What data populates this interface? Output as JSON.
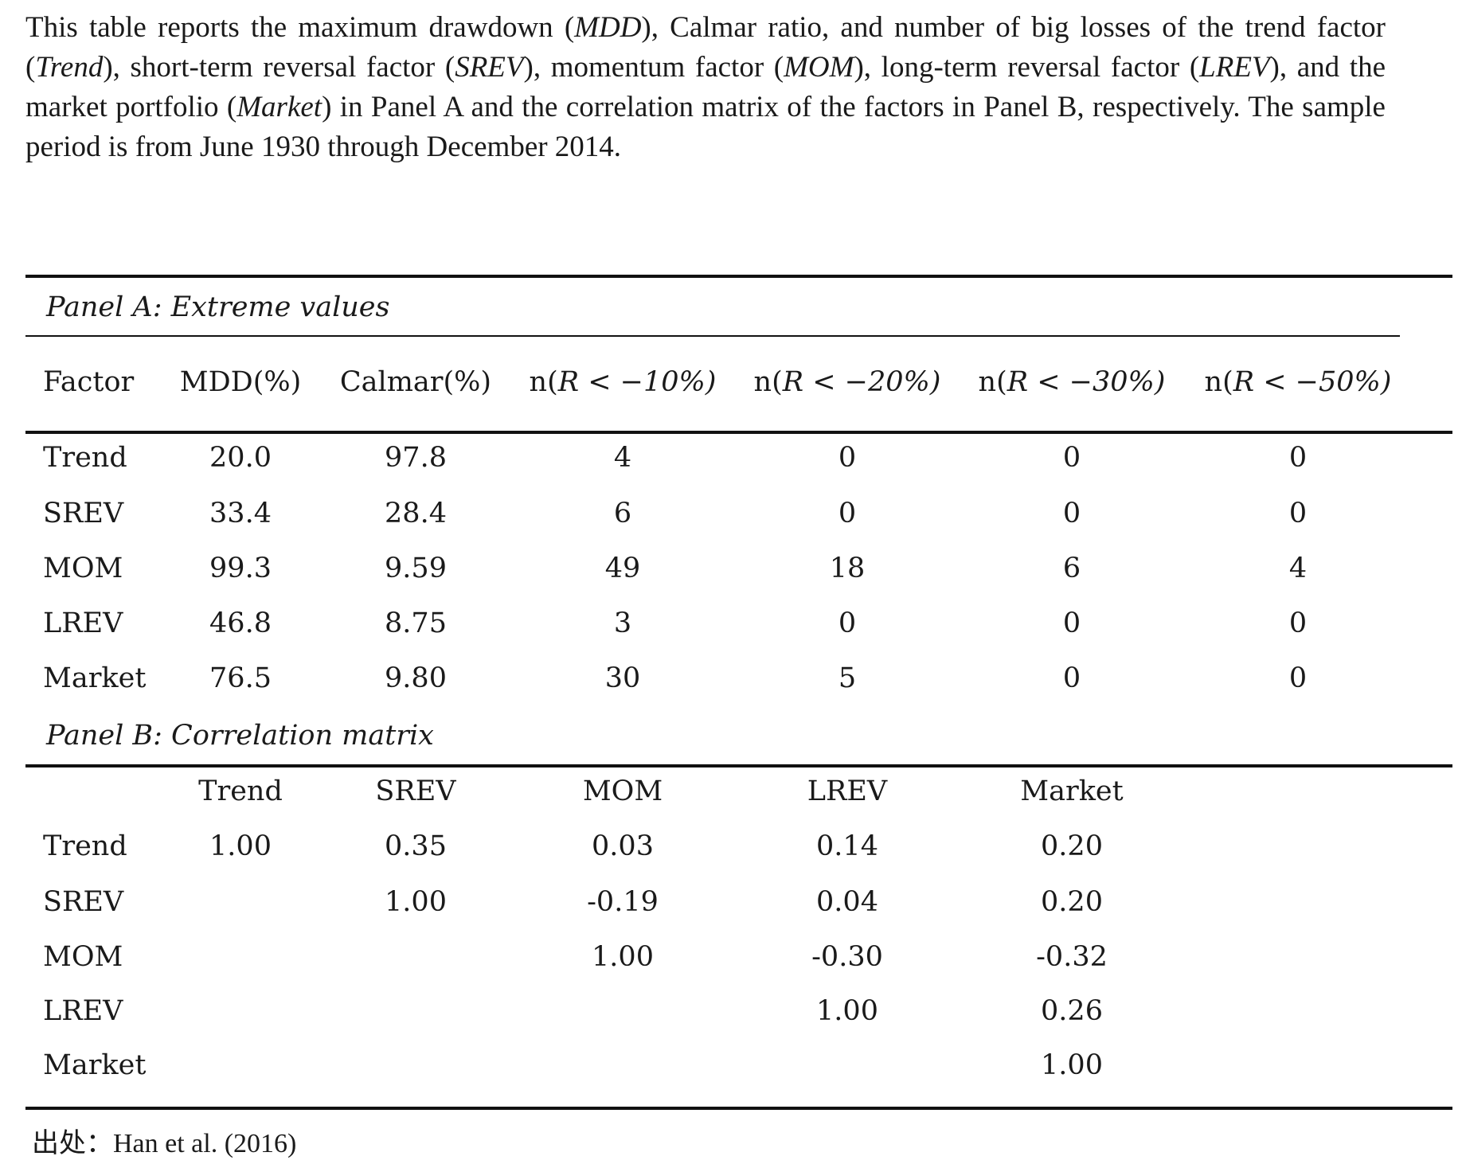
{
  "caption": {
    "p1": "This table reports the maximum drawdown (",
    "t1": "MDD",
    "p2": "), Calmar ratio, and number of big losses of the trend factor (",
    "t2": "Trend",
    "p3": "), short-term reversal factor (",
    "t3": "SREV",
    "p4": "), momentum factor (",
    "t4": "MOM",
    "p5": "), long-term reversal factor (",
    "t5": "LREV",
    "p6": "), and the market portfolio (",
    "t6": "Market",
    "p7": ") in Panel A and the correlation matrix of the factors in Panel B, respectively.  The sample period is from June 1930 through December 2014."
  },
  "panel_a": {
    "title": "Panel A: Extreme values",
    "headers": [
      "Factor",
      "MDD(%)",
      "Calmar(%)",
      "n(",
      "n(",
      "n(",
      "n("
    ],
    "threshold_labels": [
      "R < −10%)",
      "R < −20%)",
      "R < −30%)",
      "R < −50%)"
    ],
    "rows": [
      [
        "Trend",
        "20.0",
        "97.8",
        "4",
        "0",
        "0",
        "0"
      ],
      [
        "SREV",
        "33.4",
        "28.4",
        "6",
        "0",
        "0",
        "0"
      ],
      [
        "MOM",
        "99.3",
        "9.59",
        "49",
        "18",
        "6",
        "4"
      ],
      [
        "LREV",
        "46.8",
        "8.75",
        "3",
        "0",
        "0",
        "0"
      ],
      [
        "Market",
        "76.5",
        "9.80",
        "30",
        "5",
        "0",
        "0"
      ]
    ]
  },
  "panel_b": {
    "title": "Panel B: Correlation matrix",
    "headers": [
      "Trend",
      "SREV",
      "MOM",
      "LREV",
      "Market"
    ],
    "rows": [
      [
        "Trend",
        "1.00",
        "0.35",
        "0.03",
        "0.14",
        "0.20"
      ],
      [
        "SREV",
        "",
        "1.00",
        "-0.19",
        "0.04",
        "0.20"
      ],
      [
        "MOM",
        "",
        "",
        "1.00",
        "-0.30",
        "-0.32"
      ],
      [
        "LREV",
        "",
        "",
        "",
        "1.00",
        "0.26"
      ],
      [
        "Market",
        "",
        "",
        "",
        "",
        "1.00"
      ]
    ]
  },
  "source": "出处：Han et al. (2016)"
}
